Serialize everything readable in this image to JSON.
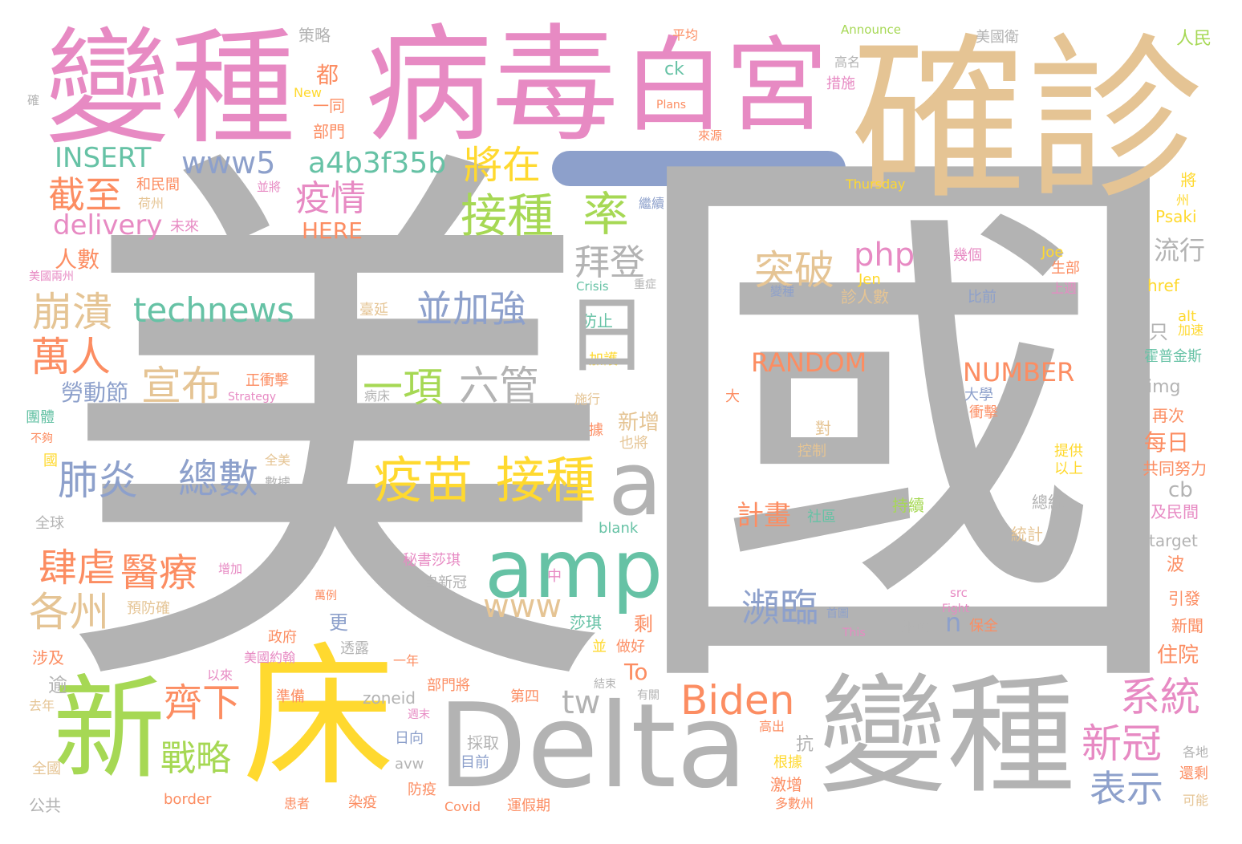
{
  "palette": {
    "gray": "#b3b3b3",
    "pink": "#e78ac3",
    "tan": "#e5c494",
    "green": "#a6d854",
    "yellow": "#ffd92f",
    "teal": "#66c2a5",
    "blue": "#8da0cb",
    "orange": "#fc8d62",
    "bar": "#8da0cb"
  },
  "words": [
    {
      "text": "國"
    },
    {
      "text": "美"
    },
    {
      "text": "確診"
    },
    {
      "text": "病毒"
    },
    {
      "text": "變種"
    },
    {
      "text": "白宮"
    },
    {
      "text": "新"
    },
    {
      "text": "床"
    },
    {
      "text": "Delta"
    },
    {
      "text": "變種"
    },
    {
      "text": "amp"
    },
    {
      "text": "a"
    },
    {
      "text": "疫苗"
    },
    {
      "text": "接種"
    },
    {
      "text": "接種"
    },
    {
      "text": "率"
    },
    {
      "text": "將在"
    },
    {
      "text": "a4b3f35b"
    },
    {
      "text": "www5"
    },
    {
      "text": "INSERT"
    },
    {
      "text": "截至"
    },
    {
      "text": "疫情"
    },
    {
      "text": "delivery"
    },
    {
      "text": "HERE"
    },
    {
      "text": "拜登"
    },
    {
      "text": "technews"
    },
    {
      "text": "崩潰"
    },
    {
      "text": "並加強"
    },
    {
      "text": "萬人"
    },
    {
      "text": "宣布"
    },
    {
      "text": "一項"
    },
    {
      "text": "六管"
    },
    {
      "text": "肺炎"
    },
    {
      "text": "總數"
    },
    {
      "text": "勞動節"
    },
    {
      "text": "肆虐"
    },
    {
      "text": "醫療"
    },
    {
      "text": "各州"
    },
    {
      "text": "齊下"
    },
    {
      "text": "戰略"
    },
    {
      "text": "Biden"
    },
    {
      "text": "tw"
    },
    {
      "text": "www"
    },
    {
      "text": "瀕臨"
    },
    {
      "text": "系統"
    },
    {
      "text": "新冠"
    },
    {
      "text": "表示"
    },
    {
      "text": "突破"
    },
    {
      "text": "php"
    },
    {
      "text": "RANDOM"
    },
    {
      "text": "NUMBER"
    },
    {
      "text": "流行"
    },
    {
      "text": "計畫"
    },
    {
      "text": "人數"
    },
    {
      "text": "都"
    },
    {
      "text": "ck"
    },
    {
      "text": "策略"
    },
    {
      "text": "平均"
    },
    {
      "text": "Announce"
    },
    {
      "text": "美國衛"
    },
    {
      "text": "人民"
    },
    {
      "text": "Plans"
    },
    {
      "text": "New"
    },
    {
      "text": "一同"
    },
    {
      "text": "部門"
    },
    {
      "text": "來源"
    },
    {
      "text": "措施"
    },
    {
      "text": "高名"
    },
    {
      "text": "Thursday"
    },
    {
      "text": "和民間"
    },
    {
      "text": "荷州"
    },
    {
      "text": "並將"
    },
    {
      "text": "未來"
    },
    {
      "text": "繼續"
    },
    {
      "text": "Psaki"
    },
    {
      "text": "href"
    },
    {
      "text": "美國兩州"
    },
    {
      "text": "Crisis"
    },
    {
      "text": "重症"
    },
    {
      "text": "Joe"
    },
    {
      "text": "Jen"
    },
    {
      "text": "生部"
    },
    {
      "text": "上週"
    },
    {
      "text": "幾個"
    },
    {
      "text": "比前"
    },
    {
      "text": "診人數"
    },
    {
      "text": "變種"
    },
    {
      "text": "防止"
    },
    {
      "text": "加護"
    },
    {
      "text": "臺延"
    },
    {
      "text": "正衝擊"
    },
    {
      "text": "Strategy"
    },
    {
      "text": "病床"
    },
    {
      "text": "施行"
    },
    {
      "text": "alt"
    },
    {
      "text": "加速"
    },
    {
      "text": "霍普金斯"
    },
    {
      "text": "img"
    },
    {
      "text": "再次"
    },
    {
      "text": "每日"
    },
    {
      "text": "共同努力"
    },
    {
      "text": "cb"
    },
    {
      "text": "及民間"
    },
    {
      "text": "target"
    },
    {
      "text": "波"
    },
    {
      "text": "引發"
    },
    {
      "text": "新聞"
    },
    {
      "text": "住院"
    },
    {
      "text": "團體"
    },
    {
      "text": "不夠"
    },
    {
      "text": "全美"
    },
    {
      "text": "數據"
    },
    {
      "text": "全球"
    },
    {
      "text": "增加"
    },
    {
      "text": "預防確"
    },
    {
      "text": "萬例"
    },
    {
      "text": "自新冠"
    },
    {
      "text": "秘書莎琪"
    },
    {
      "text": "中"
    },
    {
      "text": "莎琪"
    },
    {
      "text": "剩"
    },
    {
      "text": "更"
    },
    {
      "text": "新增"
    },
    {
      "text": "也將"
    },
    {
      "text": "大學"
    },
    {
      "text": "衝擊"
    },
    {
      "text": "大"
    },
    {
      "text": "對"
    },
    {
      "text": "控制"
    },
    {
      "text": "持續"
    },
    {
      "text": "社區"
    },
    {
      "text": "提供"
    },
    {
      "text": "以上"
    },
    {
      "text": "總統"
    },
    {
      "text": "統計"
    },
    {
      "text": "blank"
    },
    {
      "text": "src"
    },
    {
      "text": "Fight"
    },
    {
      "text": "首圖"
    },
    {
      "text": "This"
    },
    {
      "text": "細節"
    },
    {
      "text": "保全"
    },
    {
      "text": "n"
    },
    {
      "text": "To"
    },
    {
      "text": "政府"
    },
    {
      "text": "美國約翰"
    },
    {
      "text": "透露"
    },
    {
      "text": "以來"
    },
    {
      "text": "一年"
    },
    {
      "text": "部門將"
    },
    {
      "text": "第四"
    },
    {
      "text": "並"
    },
    {
      "text": "做好"
    },
    {
      "text": "結束"
    },
    {
      "text": "有關"
    },
    {
      "text": "涉及"
    },
    {
      "text": "逾"
    },
    {
      "text": "去年"
    },
    {
      "text": "準備"
    },
    {
      "text": "zoneid"
    },
    {
      "text": "週末"
    },
    {
      "text": "日向"
    },
    {
      "text": "採取"
    },
    {
      "text": "目前"
    },
    {
      "text": "avw"
    },
    {
      "text": "高出"
    },
    {
      "text": "抗"
    },
    {
      "text": "根據"
    },
    {
      "text": "激增"
    },
    {
      "text": "多數州"
    },
    {
      "text": "全國"
    },
    {
      "text": "公共"
    },
    {
      "text": "border"
    },
    {
      "text": "患者"
    },
    {
      "text": "染疫"
    },
    {
      "text": "防疫"
    },
    {
      "text": "Covid"
    },
    {
      "text": "運假期"
    },
    {
      "text": "各地"
    },
    {
      "text": "還剩"
    },
    {
      "text": "可能"
    },
    {
      "text": "確"
    },
    {
      "text": "國"
    },
    {
      "text": "日"
    },
    {
      "text": "只"
    },
    {
      "text": "將"
    },
    {
      "text": "州"
    },
    {
      "text": "據"
    }
  ]
}
